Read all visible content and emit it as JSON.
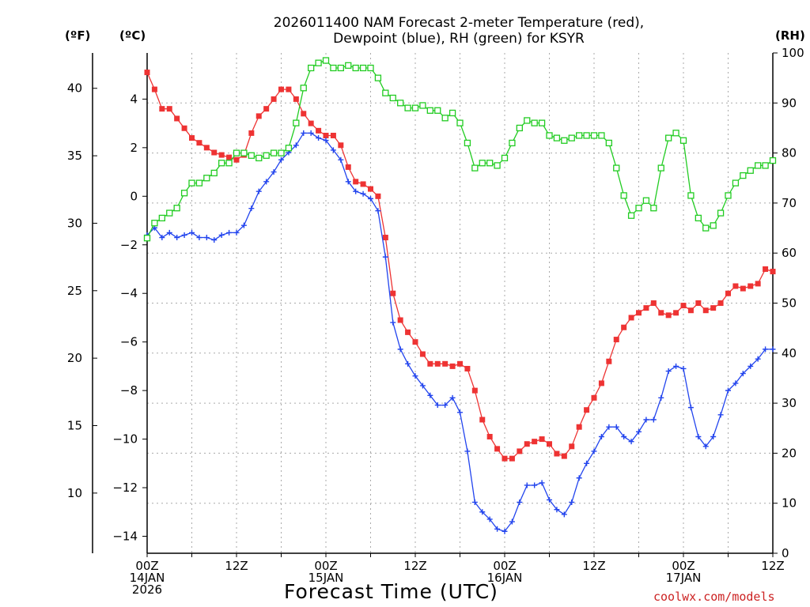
{
  "title_line1": "2026011400 NAM Forecast 2-meter Temperature (red),",
  "title_line2": "Dewpoint (blue), RH (green) for KSYR",
  "units": {
    "fahrenheit": "(ºF)",
    "celsius": "(ºC)",
    "rh": "(RH)"
  },
  "x_axis_title": "Forecast Time (UTC)",
  "credit": "coolwx.com/models",
  "chart_data": {
    "type": "line",
    "title": "2026011400 NAM Forecast 2-meter Temperature (red), Dewpoint (blue), RH (green) for KSYR",
    "xlabel": "Forecast Time (UTC)",
    "x_unit": "forecast hour from 2026-01-14 00Z",
    "x_ticks": [
      {
        "hour": 0,
        "lines": [
          "00Z",
          "14JAN",
          "2026"
        ]
      },
      {
        "hour": 12,
        "lines": [
          "12Z"
        ]
      },
      {
        "hour": 24,
        "lines": [
          "00Z",
          "15JAN"
        ]
      },
      {
        "hour": 36,
        "lines": [
          "12Z"
        ]
      },
      {
        "hour": 48,
        "lines": [
          "00Z",
          "16JAN"
        ]
      },
      {
        "hour": 60,
        "lines": [
          "12Z"
        ]
      },
      {
        "hour": 72,
        "lines": [
          "00Z",
          "17JAN"
        ]
      },
      {
        "hour": 84,
        "lines": [
          "12Z"
        ]
      }
    ],
    "xlim": [
      0,
      84
    ],
    "y_left_celsius": {
      "ylim": [
        -14.7,
        5.9
      ],
      "ticks": [
        4,
        2,
        0,
        -2,
        -4,
        -6,
        -8,
        -10,
        -12,
        -14
      ]
    },
    "y_left_fahrenheit": {
      "ticks": [
        40,
        35,
        30,
        25,
        20,
        15,
        10
      ]
    },
    "y_right_rh": {
      "ylim": [
        0,
        100
      ],
      "ticks": [
        0,
        10,
        20,
        30,
        40,
        50,
        60,
        70,
        80,
        90,
        100
      ]
    },
    "grid": true,
    "series": [
      {
        "name": "Temperature (red)",
        "axis": "celsius",
        "color": "#ee3333",
        "marker": "filled-square",
        "x": [
          0,
          1,
          2,
          3,
          4,
          5,
          6,
          7,
          8,
          9,
          10,
          11,
          12,
          13,
          14,
          15,
          16,
          17,
          18,
          19,
          20,
          21,
          22,
          23,
          24,
          25,
          26,
          27,
          28,
          29,
          30,
          31,
          32,
          33,
          34,
          35,
          36,
          37,
          38,
          39,
          40,
          41,
          42,
          43,
          44,
          45,
          46,
          47,
          48,
          49,
          50,
          51,
          52,
          53,
          54,
          55,
          56,
          57,
          58,
          59,
          60,
          61,
          62,
          63,
          64,
          65,
          66,
          67,
          68,
          69,
          70,
          71,
          72,
          73,
          74,
          75,
          76,
          77,
          78,
          79,
          80,
          81,
          82,
          83,
          84
        ],
        "values": [
          5.1,
          4.4,
          3.6,
          3.6,
          3.2,
          2.8,
          2.4,
          2.2,
          2.0,
          1.8,
          1.7,
          1.6,
          1.5,
          1.7,
          2.6,
          3.3,
          3.6,
          4.0,
          4.4,
          4.4,
          4.0,
          3.4,
          3.0,
          2.7,
          2.5,
          2.5,
          2.1,
          1.2,
          0.6,
          0.5,
          0.3,
          0.0,
          -1.7,
          -4.0,
          -5.1,
          -5.6,
          -6.0,
          -6.5,
          -6.9,
          -6.9,
          -6.9,
          -7.0,
          -6.9,
          -7.1,
          -8.0,
          -9.2,
          -9.9,
          -10.4,
          -10.8,
          -10.8,
          -10.5,
          -10.2,
          -10.1,
          -10.0,
          -10.2,
          -10.6,
          -10.7,
          -10.3,
          -9.5,
          -8.8,
          -8.3,
          -7.7,
          -6.8,
          -5.9,
          -5.4,
          -5.0,
          -4.8,
          -4.6,
          -4.4,
          -4.8,
          -4.9,
          -4.8,
          -4.5,
          -4.7,
          -4.4,
          -4.7,
          -4.6,
          -4.4,
          -4.0,
          -3.7,
          -3.8,
          -3.7,
          -3.6,
          -3.0,
          -3.1
        ]
      },
      {
        "name": "Dewpoint (blue)",
        "axis": "celsius",
        "color": "#2244ee",
        "marker": "plus",
        "x": [
          0,
          1,
          2,
          3,
          4,
          5,
          6,
          7,
          8,
          9,
          10,
          11,
          12,
          13,
          14,
          15,
          16,
          17,
          18,
          19,
          20,
          21,
          22,
          23,
          24,
          25,
          26,
          27,
          28,
          29,
          30,
          31,
          32,
          33,
          34,
          35,
          36,
          37,
          38,
          39,
          40,
          41,
          42,
          43,
          44,
          45,
          46,
          47,
          48,
          49,
          50,
          51,
          52,
          53,
          54,
          55,
          56,
          57,
          58,
          59,
          60,
          61,
          62,
          63,
          64,
          65,
          66,
          67,
          68,
          69,
          70,
          71,
          72,
          73,
          74,
          75,
          76,
          77,
          78,
          79,
          80,
          81,
          82,
          83,
          84
        ],
        "values": [
          -1.6,
          -1.3,
          -1.7,
          -1.5,
          -1.7,
          -1.6,
          -1.5,
          -1.7,
          -1.7,
          -1.8,
          -1.6,
          -1.5,
          -1.5,
          -1.2,
          -0.5,
          0.2,
          0.6,
          1.0,
          1.5,
          1.8,
          2.1,
          2.6,
          2.6,
          2.4,
          2.3,
          1.9,
          1.5,
          0.6,
          0.2,
          0.1,
          -0.1,
          -0.6,
          -2.5,
          -5.2,
          -6.3,
          -6.9,
          -7.4,
          -7.8,
          -8.2,
          -8.6,
          -8.6,
          -8.3,
          -8.9,
          -10.5,
          -12.6,
          -13.0,
          -13.3,
          -13.7,
          -13.8,
          -13.4,
          -12.6,
          -11.9,
          -11.9,
          -11.8,
          -12.5,
          -12.9,
          -13.1,
          -12.6,
          -11.6,
          -11.0,
          -10.5,
          -9.9,
          -9.5,
          -9.5,
          -9.9,
          -10.1,
          -9.7,
          -9.2,
          -9.2,
          -8.3,
          -7.2,
          -7.0,
          -7.1,
          -8.7,
          -9.9,
          -10.3,
          -9.9,
          -9.0,
          -8.0,
          -7.7,
          -7.3,
          -7.0,
          -6.7,
          -6.3,
          -6.3
        ]
      },
      {
        "name": "RH (green)",
        "axis": "rh",
        "color": "#22cc22",
        "marker": "open-square",
        "x": [
          0,
          1,
          2,
          3,
          4,
          5,
          6,
          7,
          8,
          9,
          10,
          11,
          12,
          13,
          14,
          15,
          16,
          17,
          18,
          19,
          20,
          21,
          22,
          23,
          24,
          25,
          26,
          27,
          28,
          29,
          30,
          31,
          32,
          33,
          34,
          35,
          36,
          37,
          38,
          39,
          40,
          41,
          42,
          43,
          44,
          45,
          46,
          47,
          48,
          49,
          50,
          51,
          52,
          53,
          54,
          55,
          56,
          57,
          58,
          59,
          60,
          61,
          62,
          63,
          64,
          65,
          66,
          67,
          68,
          69,
          70,
          71,
          72,
          73,
          74,
          75,
          76,
          77,
          78,
          79,
          80,
          81,
          82,
          83,
          84
        ],
        "values": [
          63,
          66,
          67,
          68,
          69,
          72,
          74,
          74,
          75,
          76,
          78,
          78,
          80,
          80,
          79.5,
          79,
          79.5,
          80,
          80,
          81,
          86,
          93,
          97,
          98,
          98.5,
          97,
          97,
          97.5,
          97,
          97,
          97,
          95,
          92,
          91,
          90,
          89,
          89,
          89.5,
          88.5,
          88.5,
          87,
          88,
          86,
          82,
          77,
          78,
          78,
          77.5,
          79,
          82,
          85,
          86.5,
          86,
          86,
          83.5,
          83,
          82.5,
          83,
          83.5,
          83.5,
          83.5,
          83.5,
          82,
          77,
          71.5,
          67.5,
          69,
          70.5,
          69,
          77,
          83,
          84,
          82.5,
          71.5,
          67,
          65,
          65.5,
          68,
          71.5,
          74,
          75.5,
          76.5,
          77.5,
          77.5,
          78.5
        ]
      }
    ]
  }
}
